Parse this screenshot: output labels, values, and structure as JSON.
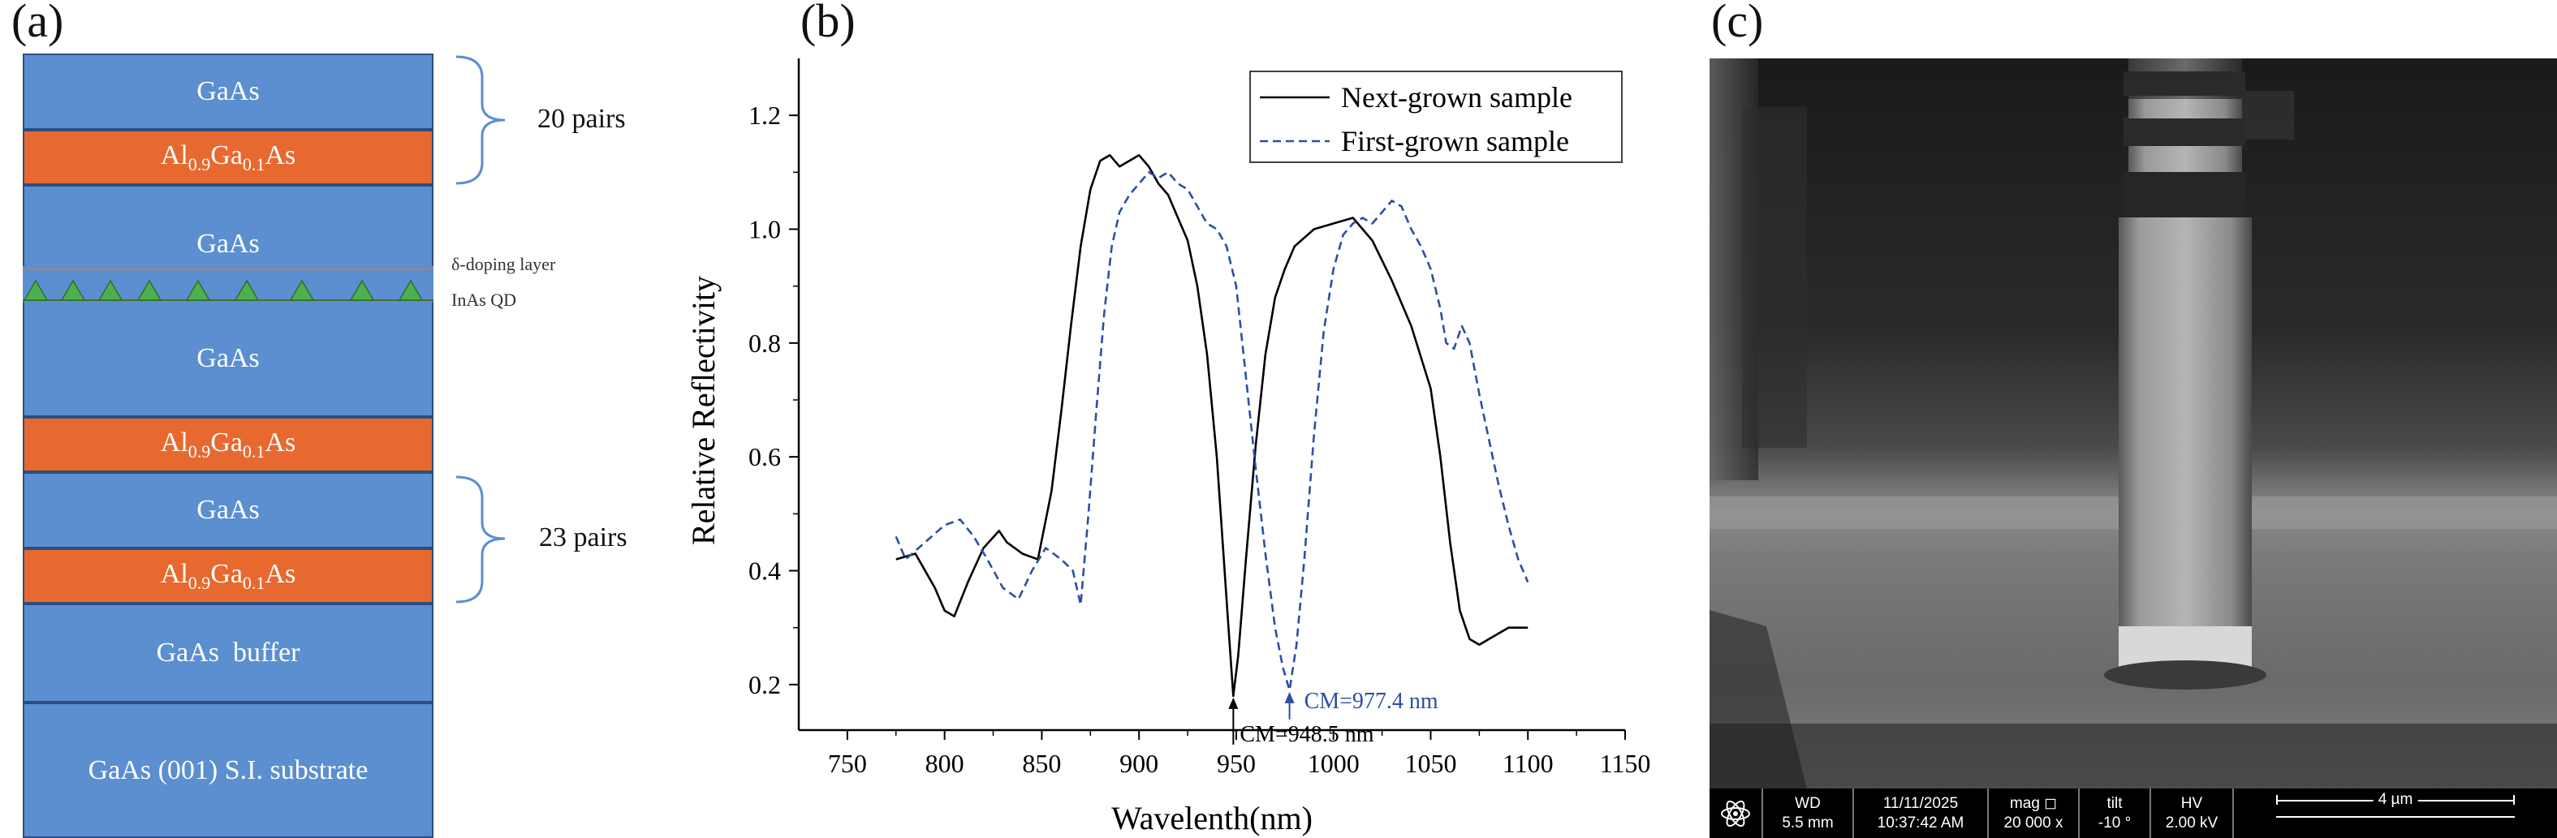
{
  "panel_a": {
    "label": "(a)",
    "layers": [
      {
        "text": "GaAs",
        "type": "GaAs"
      },
      {
        "text": "Al0.9Ga0.1As",
        "type": "AlGaAs"
      },
      {
        "text": "GaAs",
        "type": "GaAs"
      },
      {
        "text": "GaAs",
        "type": "GaAs"
      },
      {
        "text": "Al0.9Ga0.1As",
        "type": "AlGaAs"
      },
      {
        "text": "GaAs",
        "type": "GaAs"
      },
      {
        "text": "Al0.9Ga0.1As",
        "type": "AlGaAs"
      },
      {
        "text": "GaAs  buffer",
        "type": "GaAs"
      },
      {
        "text": "GaAs (001) S.I. substrate",
        "type": "GaAs"
      }
    ],
    "algaas": {
      "prefix": "Al",
      "sub1": "0.9",
      "mid": "Ga",
      "sub2": "0.1",
      "suffix": "As"
    },
    "top_pairs": "20 pairs",
    "bottom_pairs": "23 pairs",
    "doping_label": "δ-doping layer",
    "qd_label": "InAs QD",
    "colors": {
      "gaas": "#5b8fd0",
      "algaas": "#e8692f",
      "qd": "#4caf50",
      "brace": "#5b8fd0"
    }
  },
  "chart_data": {
    "label": "(b)",
    "type": "line",
    "title": "",
    "xlabel": "Wavelenth(nm)",
    "ylabel": "Relative Reflectivity",
    "xlim": [
      725,
      1150
    ],
    "ylim": [
      0.12,
      1.3
    ],
    "xticks": [
      750,
      800,
      850,
      900,
      950,
      1000,
      1050,
      1100,
      1150
    ],
    "yticks": [
      0.2,
      0.4,
      0.6,
      0.8,
      1.0,
      1.2
    ],
    "legend_position": "top-right",
    "series": [
      {
        "name": "Next-grown sample",
        "style": "solid",
        "color": "#000000",
        "x": [
          775,
          785,
          795,
          800,
          805,
          812,
          820,
          828,
          832,
          840,
          848,
          855,
          860,
          865,
          870,
          875,
          880,
          885,
          890,
          895,
          900,
          905,
          910,
          915,
          920,
          925,
          930,
          935,
          940,
          943,
          946,
          948.5,
          951,
          955,
          960,
          965,
          970,
          975,
          980,
          990,
          1000,
          1010,
          1020,
          1030,
          1040,
          1050,
          1055,
          1060,
          1065,
          1070,
          1075,
          1080,
          1085,
          1090,
          1095,
          1100
        ],
        "y": [
          0.42,
          0.43,
          0.37,
          0.33,
          0.32,
          0.38,
          0.44,
          0.47,
          0.45,
          0.43,
          0.42,
          0.54,
          0.68,
          0.83,
          0.97,
          1.07,
          1.12,
          1.13,
          1.11,
          1.12,
          1.13,
          1.11,
          1.08,
          1.06,
          1.02,
          0.98,
          0.9,
          0.78,
          0.6,
          0.45,
          0.3,
          0.18,
          0.25,
          0.42,
          0.62,
          0.78,
          0.88,
          0.93,
          0.97,
          1.0,
          1.01,
          1.02,
          0.98,
          0.91,
          0.83,
          0.72,
          0.6,
          0.45,
          0.33,
          0.28,
          0.27,
          0.28,
          0.29,
          0.3,
          0.3,
          0.3
        ]
      },
      {
        "name": "First-grown sample",
        "style": "dashed",
        "color": "#2c4fa6",
        "x": [
          775,
          780,
          790,
          800,
          808,
          815,
          822,
          830,
          838,
          845,
          852,
          860,
          866,
          870,
          874,
          878,
          882,
          886,
          890,
          895,
          900,
          905,
          910,
          915,
          920,
          925,
          930,
          935,
          940,
          945,
          950,
          955,
          960,
          965,
          970,
          974,
          977.4,
          981,
          985,
          990,
          995,
          1000,
          1005,
          1010,
          1015,
          1020,
          1025,
          1030,
          1035,
          1040,
          1045,
          1050,
          1055,
          1058,
          1062,
          1066,
          1070,
          1075,
          1080,
          1085,
          1090,
          1095,
          1100
        ],
        "y": [
          0.46,
          0.42,
          0.45,
          0.48,
          0.49,
          0.46,
          0.42,
          0.37,
          0.35,
          0.4,
          0.44,
          0.42,
          0.4,
          0.34,
          0.5,
          0.68,
          0.85,
          0.97,
          1.03,
          1.06,
          1.08,
          1.1,
          1.09,
          1.1,
          1.08,
          1.07,
          1.04,
          1.01,
          1.0,
          0.97,
          0.9,
          0.74,
          0.58,
          0.43,
          0.3,
          0.23,
          0.19,
          0.27,
          0.42,
          0.64,
          0.82,
          0.93,
          0.99,
          1.01,
          1.02,
          1.01,
          1.03,
          1.05,
          1.04,
          1.0,
          0.97,
          0.93,
          0.86,
          0.8,
          0.79,
          0.83,
          0.8,
          0.71,
          0.63,
          0.55,
          0.48,
          0.42,
          0.38
        ]
      }
    ],
    "annotations": [
      {
        "text": "CM=948.5 nm",
        "x": 948.5,
        "y": 0.18,
        "color": "#000000"
      },
      {
        "text": "CM=977.4 nm",
        "x": 977.4,
        "y": 0.19,
        "color": "#2c4fa6"
      }
    ]
  },
  "panel_c": {
    "label": "(c)",
    "info_bar": [
      {
        "head": "WD",
        "value": "5.5 mm"
      },
      {
        "head": "11/11/2025",
        "value": "10:37:42 AM"
      },
      {
        "head": "mag ◻",
        "value": "20 000 x"
      },
      {
        "head": "tilt",
        "value": "-10 °"
      },
      {
        "head": "HV",
        "value": "2.00 kV"
      }
    ],
    "scale_label": "4 µm"
  }
}
